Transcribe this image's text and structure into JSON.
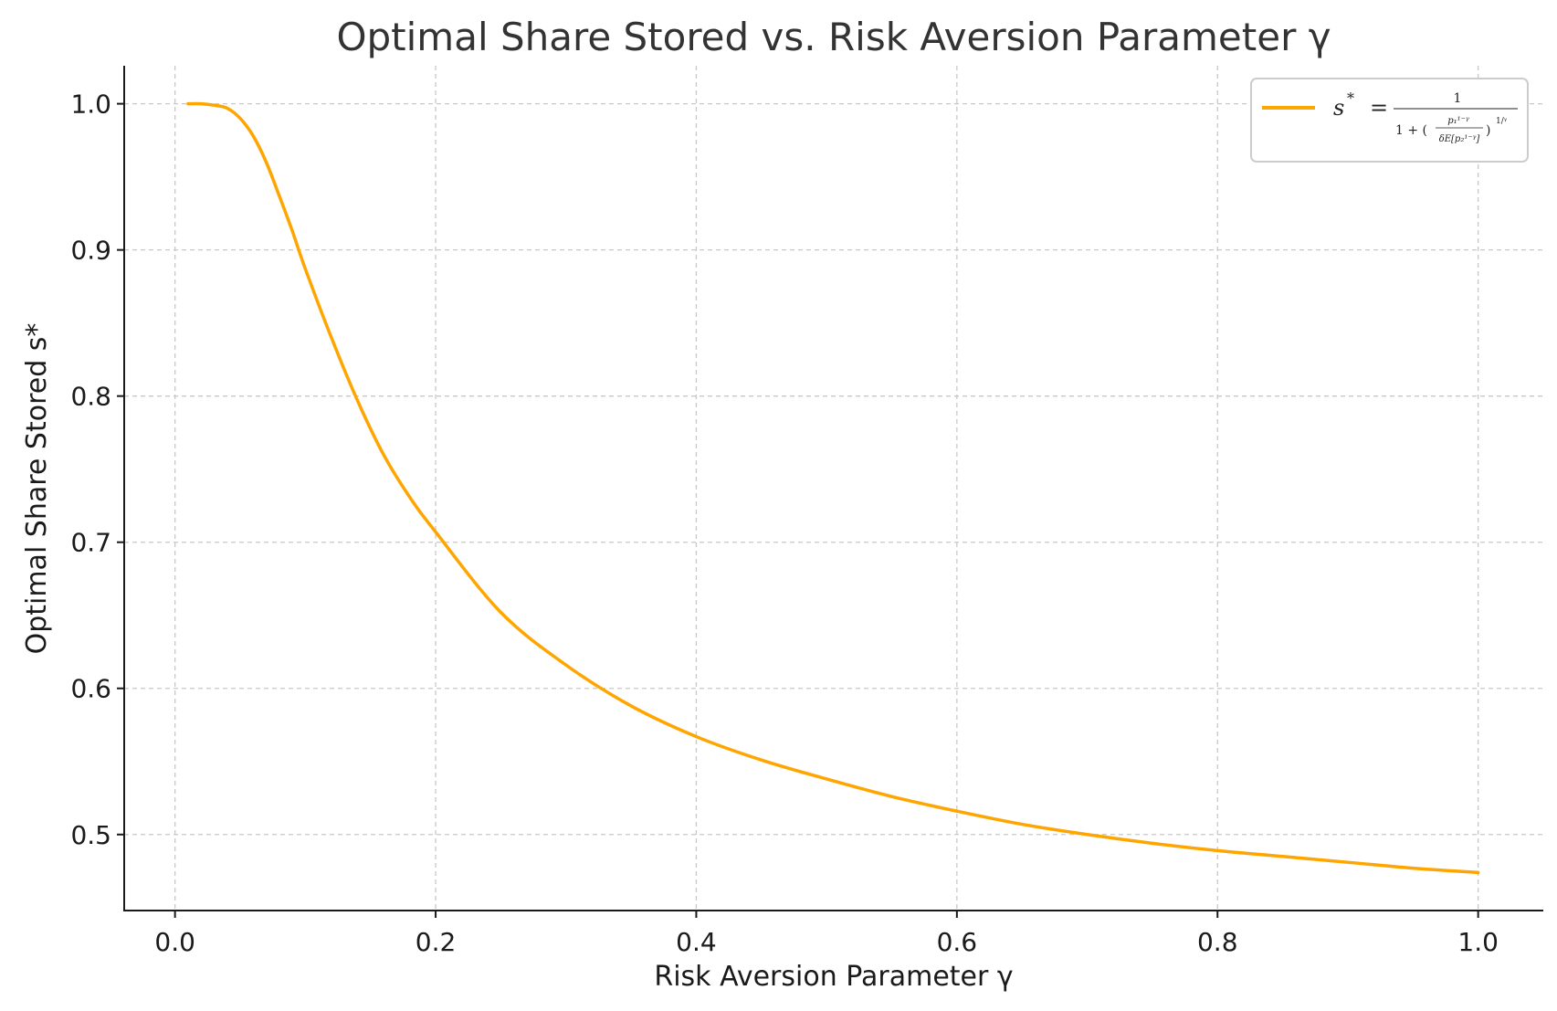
{
  "chart_data": {
    "type": "line",
    "title": "Optimal Share Stored vs. Risk Aversion Parameter γ",
    "xlabel": "Risk Aversion Parameter γ",
    "ylabel": "Optimal Share Stored s*",
    "xlim": [
      -0.039,
      1.05
    ],
    "ylim": [
      0.448,
      1.026
    ],
    "xticks": [
      "0.0",
      "0.2",
      "0.4",
      "0.6",
      "0.8",
      "1.0"
    ],
    "yticks": [
      "0.5",
      "0.6",
      "0.7",
      "0.8",
      "0.9",
      "1.0"
    ],
    "grid": true,
    "legend_position": "top-right",
    "series": [
      {
        "name": "s* = 1 / (1 + (p1^(1−γ) / (δE[p2^(1−γ)]))^(1/γ))",
        "color": "#FFA500",
        "x": [
          0.01,
          0.02,
          0.03,
          0.04,
          0.05,
          0.06,
          0.07,
          0.08,
          0.09,
          0.1,
          0.12,
          0.14,
          0.16,
          0.18,
          0.2,
          0.25,
          0.3,
          0.35,
          0.4,
          0.45,
          0.5,
          0.55,
          0.6,
          0.65,
          0.7,
          0.75,
          0.8,
          0.85,
          0.9,
          0.95,
          1.0
        ],
        "y": [
          1.0,
          1.0,
          0.999,
          0.997,
          0.99,
          0.978,
          0.96,
          0.937,
          0.913,
          0.887,
          0.84,
          0.797,
          0.76,
          0.731,
          0.707,
          0.652,
          0.616,
          0.588,
          0.567,
          0.551,
          0.538,
          0.526,
          0.516,
          0.507,
          0.5,
          0.494,
          0.489,
          0.485,
          0.481,
          0.477,
          0.474
        ]
      }
    ]
  }
}
